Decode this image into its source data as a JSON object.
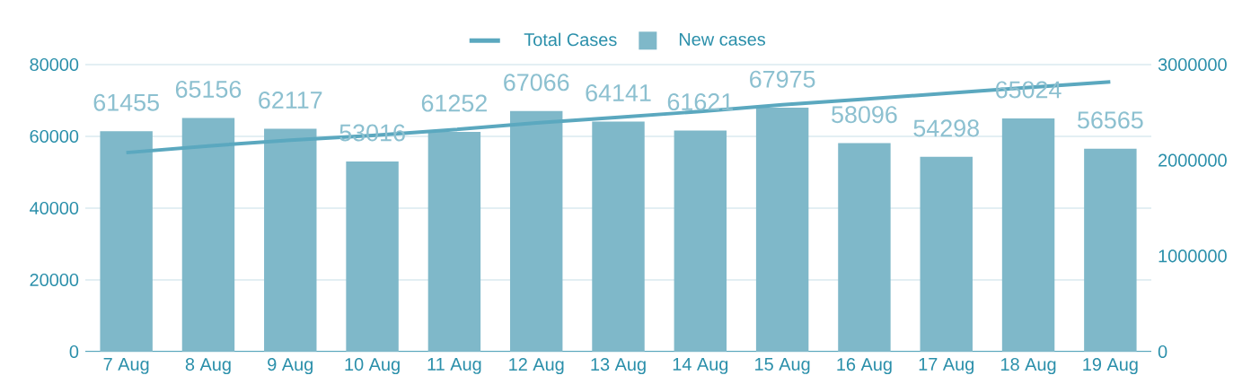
{
  "chart_data": {
    "type": "bar",
    "categories": [
      "7 Aug",
      "8 Aug",
      "9 Aug",
      "10 Aug",
      "11 Aug",
      "12 Aug",
      "13 Aug",
      "14 Aug",
      "15 Aug",
      "16 Aug",
      "17 Aug",
      "18 Aug",
      "19 Aug"
    ],
    "series": [
      {
        "name": "Total Cases",
        "type": "line",
        "axis": "y2",
        "color": "#5ba8bf",
        "values": [
          2080000,
          2150000,
          2210000,
          2260000,
          2320000,
          2390000,
          2450000,
          2510000,
          2580000,
          2640000,
          2700000,
          2760000,
          2820000
        ]
      },
      {
        "name": "New cases",
        "color": "#7fb8c9",
        "values": [
          61455,
          65156,
          62117,
          53016,
          61252,
          67066,
          64141,
          61621,
          67975,
          58096,
          54298,
          65024,
          56565
        ],
        "value_labels": [
          "61455",
          "65156",
          "62117",
          "53016",
          "61252",
          "67066",
          "64141",
          "61621",
          "67975",
          "58096",
          "54298",
          "65024",
          "56565"
        ]
      }
    ],
    "ylim": [
      0,
      80000
    ],
    "yticks": [
      0,
      20000,
      40000,
      60000,
      80000
    ],
    "y2lim": [
      0,
      3000000
    ],
    "y2ticks": [
      0,
      1000000,
      2000000,
      3000000
    ],
    "grid": "y",
    "legend": "top"
  }
}
